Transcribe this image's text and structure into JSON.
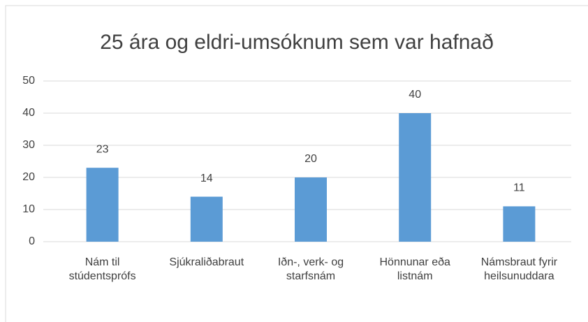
{
  "chart_data": {
    "type": "bar",
    "title": "25 ára og eldri-umsóknum sem var hafnað",
    "categories": [
      "Nám til stúdentsprófs",
      "Sjúkraliðabraut",
      "Iðn-, verk- og starfsnám",
      "Hönnunar eða listnám",
      "Námsbraut fyrir heilsunuddara"
    ],
    "values": [
      23,
      14,
      20,
      40,
      11
    ],
    "color": "#5b9bd5",
    "ylim": [
      0,
      50
    ],
    "yticks": [
      0,
      10,
      20,
      30,
      40,
      50
    ],
    "grid": true
  }
}
